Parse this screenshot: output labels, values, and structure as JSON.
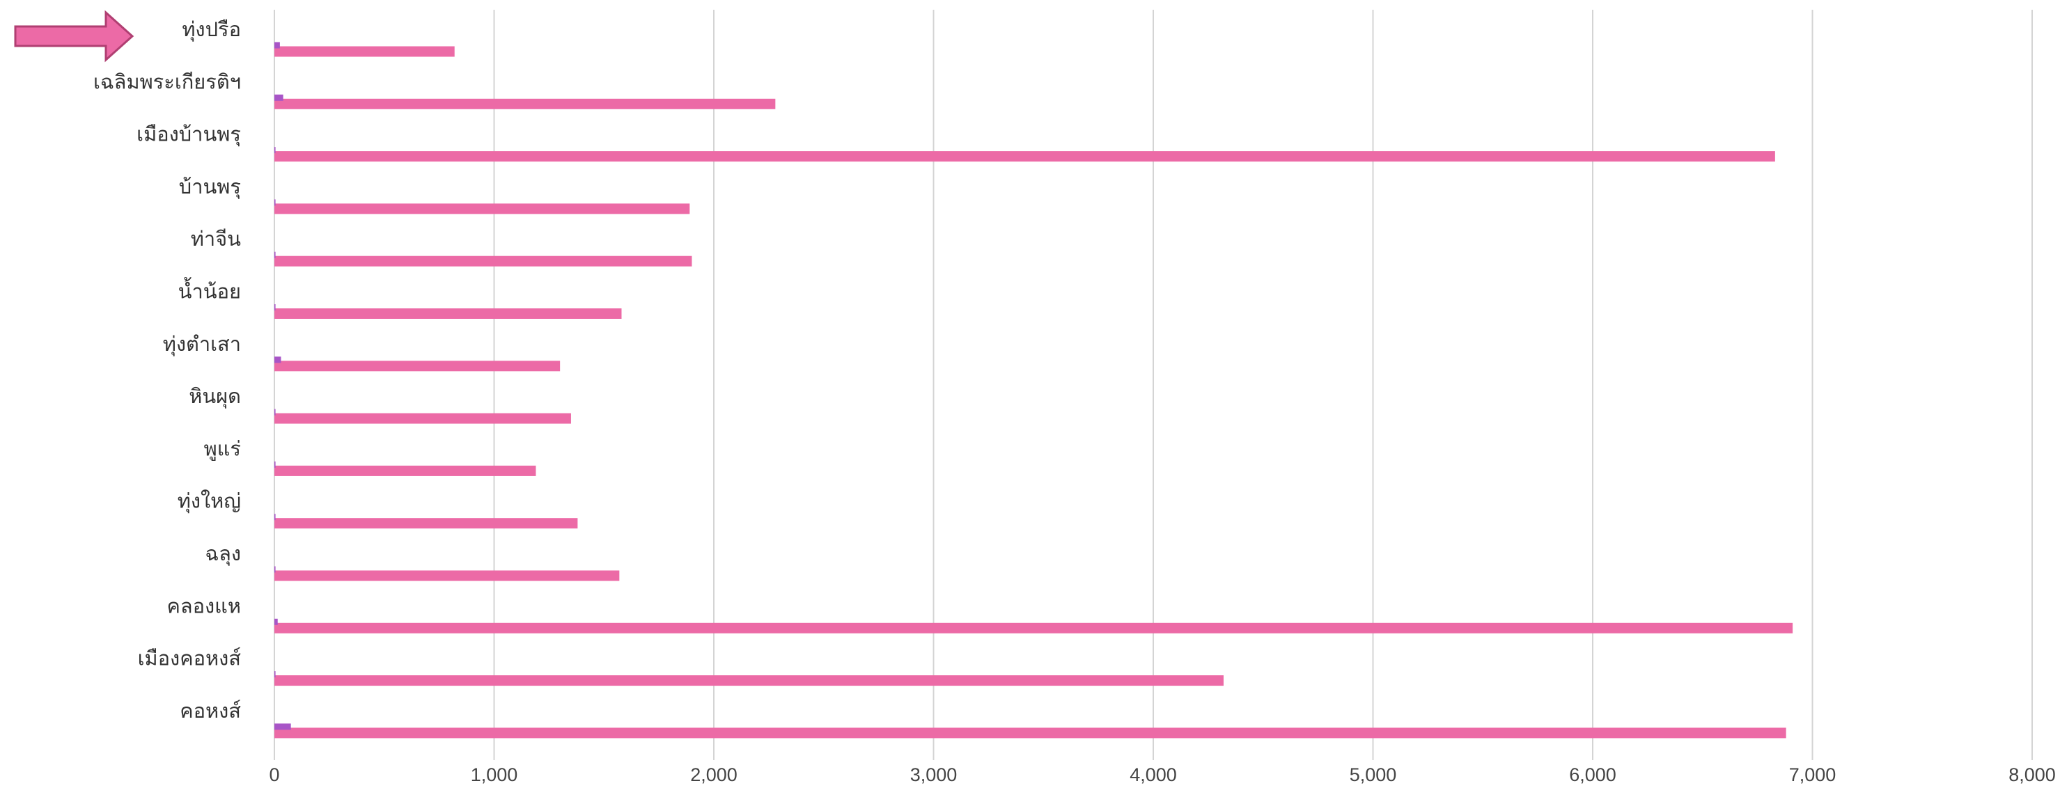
{
  "chart_data": {
    "type": "bar",
    "orientation": "horizontal",
    "categories": [
      "ทุ่งปรือ",
      "เฉลิมพระเกียรติฯ",
      "เมืองบ้านพรุ",
      "บ้านพรุ",
      "ท่าจีน",
      "น้ำน้อย",
      "ทุ่งตำเสา",
      "หินผุด",
      "พูแร่",
      "ทุ่งใหญ่",
      "ฉลุง",
      "คลองแห",
      "เมืองคอหงส์",
      "คอหงส์"
    ],
    "series": [
      {
        "values": [
          25,
          40,
          5,
          5,
          5,
          5,
          30,
          5,
          5,
          5,
          5,
          15,
          5,
          75
        ],
        "color": "#a855c7"
      },
      {
        "values": [
          820,
          2280,
          6830,
          1890,
          1900,
          1580,
          1300,
          1350,
          1190,
          1380,
          1570,
          6910,
          4320,
          6880
        ],
        "color": "#ec6aa6"
      }
    ],
    "xlim": [
      0,
      8000
    ],
    "x_ticks": [
      "0",
      "1,000",
      "2,000",
      "3,000",
      "4,000",
      "5,000",
      "6,000",
      "7,000",
      "8,000"
    ],
    "x_tick_values": [
      0,
      1000,
      2000,
      3000,
      4000,
      5000,
      6000,
      7000,
      8000
    ],
    "grid": true,
    "title": "",
    "xlabel": "",
    "ylabel": "",
    "annotation": {
      "type": "arrow",
      "target_category": "ทุ่งปรือ",
      "fill": "#ec6aa6",
      "stroke": "#b03f72"
    }
  }
}
